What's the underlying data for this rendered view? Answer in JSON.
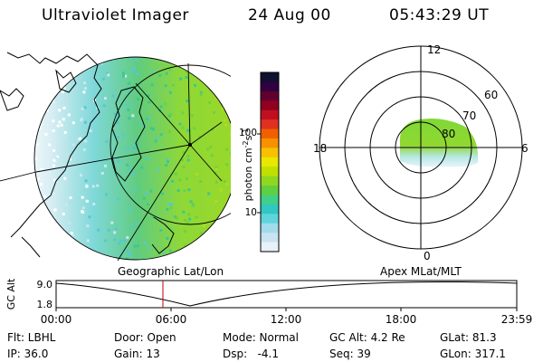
{
  "header": {
    "title": "Ultraviolet Imager",
    "date": "24 Aug 00",
    "time": "05:43:29 UT"
  },
  "geo_panel": {
    "label": "Geographic Lat/Lon"
  },
  "colorbar": {
    "axis_label": "photon cm",
    "exp1": "-2",
    "s": "s",
    "exp2": "-1",
    "ticks": [
      "100",
      "10"
    ],
    "colors": [
      "#e8f0f8",
      "#c8e4f0",
      "#a0dcec",
      "#60d4dc",
      "#30c8c0",
      "#40d088",
      "#60d040",
      "#90d820",
      "#c0e000",
      "#e8e800",
      "#f8c000",
      "#f89000",
      "#f06000",
      "#e03020",
      "#c01020",
      "#900020",
      "#600030",
      "#300040",
      "#101030"
    ]
  },
  "polar_panel": {
    "label": "Apex MLat/MLT",
    "mlt_labels": {
      "top": "12",
      "left": "18",
      "right": "6",
      "bottom": "0"
    },
    "lat_labels": [
      "60",
      "70",
      "80"
    ]
  },
  "timeline": {
    "y_axis_label": "GC Alt",
    "y_ticks": [
      "9.0",
      "1.8"
    ],
    "x_ticks": [
      "00:00",
      "06:00",
      "12:00",
      "18:00",
      "23:59"
    ]
  },
  "info": {
    "filter": "Flt: LBHL",
    "ip": "IP: 36.0",
    "door": "Door: Open",
    "gain": "Gain: 13",
    "mode": "Mode: Normal",
    "dsp": "Dsp:   -4.1",
    "gc_alt": "GC Alt: 4.2 Re",
    "seq": "Seq: 39",
    "glat": "GLat: 81.3",
    "glon": "GLon: 317.1"
  }
}
